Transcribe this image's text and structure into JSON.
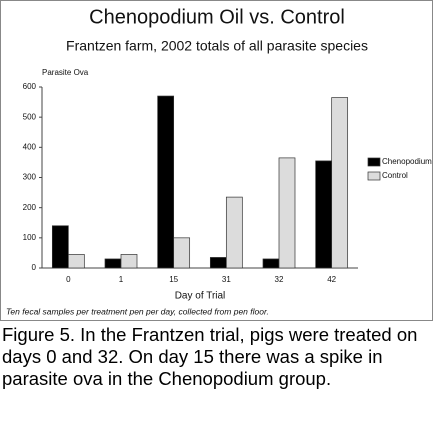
{
  "chart_data": {
    "type": "bar",
    "title": "Chenopodium Oil vs. Control",
    "subtitle": "Frantzen farm, 2002 totals of all parasite species",
    "y_label": "Parasite  Ova",
    "x_label": "Day  of  Trial",
    "note": "Ten fecal samples per treatment pen per day, collected from pen floor.",
    "categories": [
      "0",
      "1",
      "15",
      "31",
      "32",
      "42"
    ],
    "series": [
      {
        "name": "Chenopodium",
        "color": "#000000",
        "values": [
          140,
          30,
          570,
          35,
          30,
          355
        ]
      },
      {
        "name": "Control",
        "color": "#dcdcdc",
        "values": [
          45,
          45,
          100,
          235,
          365,
          565
        ]
      }
    ],
    "ylim": [
      0,
      600
    ],
    "yticks": [
      0,
      100,
      200,
      300,
      400,
      500,
      600
    ],
    "grid": false,
    "legend": "right"
  },
  "caption": "Figure 5. In the Frantzen trial, pigs were treated on days 0 and 32. On day 15 there was a spike in parasite ova in the Chenopodium group."
}
